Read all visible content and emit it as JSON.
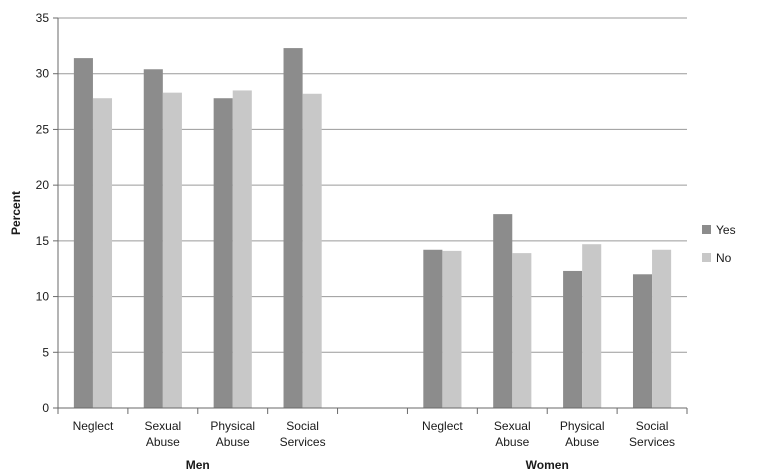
{
  "chart_data": {
    "type": "bar",
    "ylabel": "Percent",
    "ylim": [
      0,
      35
    ],
    "yticks": [
      0,
      5,
      10,
      15,
      20,
      25,
      30,
      35
    ],
    "grid": true,
    "legend_position": "right",
    "groups": [
      {
        "name": "Men",
        "categories": [
          "Neglect",
          "Sexual Abuse",
          "Physical Abuse",
          "Social Services"
        ]
      },
      {
        "name": "Women",
        "categories": [
          "Neglect",
          "Sexual Abuse",
          "Physical Abuse",
          "Social Services"
        ]
      }
    ],
    "series": [
      {
        "name": "Yes",
        "color": "#8c8c8c",
        "values": [
          [
            31.4,
            30.4,
            27.8,
            32.3
          ],
          [
            14.2,
            17.4,
            12.3,
            12.0
          ]
        ]
      },
      {
        "name": "No",
        "color": "#c8c8c8",
        "values": [
          [
            27.8,
            28.3,
            28.5,
            28.2
          ],
          [
            14.1,
            13.9,
            14.7,
            14.2
          ]
        ]
      }
    ]
  }
}
